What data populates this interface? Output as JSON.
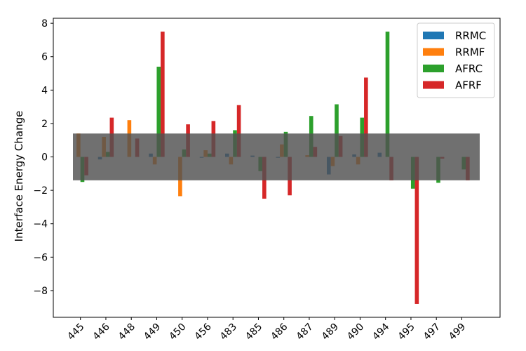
{
  "chart_data": {
    "type": "bar",
    "title": "",
    "xlabel": "",
    "ylabel": "Interface Energy Change",
    "categories": [
      "445",
      "446",
      "448",
      "449",
      "450",
      "456",
      "483",
      "485",
      "486",
      "487",
      "489",
      "490",
      "494",
      "495",
      "497",
      "499"
    ],
    "series": [
      {
        "name": "RRMC",
        "color": "#1f77b4",
        "values": [
          0.0,
          -0.15,
          0.0,
          0.2,
          0.0,
          -0.05,
          0.2,
          0.08,
          -0.05,
          0.0,
          -1.05,
          0.15,
          0.25,
          0.0,
          0.0,
          0.0
        ]
      },
      {
        "name": "RRMF",
        "color": "#ff7f0e",
        "values": [
          1.4,
          1.2,
          2.2,
          -0.45,
          -2.35,
          0.4,
          -0.45,
          0.0,
          0.75,
          0.1,
          -0.55,
          -0.45,
          0.0,
          0.0,
          0.0,
          0.0
        ]
      },
      {
        "name": "AFRC",
        "color": "#2ca02c",
        "values": [
          -1.5,
          0.3,
          0.0,
          5.4,
          0.45,
          0.2,
          1.6,
          -0.85,
          1.5,
          2.45,
          3.15,
          2.35,
          7.5,
          -1.9,
          -1.55,
          -0.75
        ]
      },
      {
        "name": "AFRF",
        "color": "#d62728",
        "values": [
          -1.1,
          2.35,
          1.1,
          7.5,
          1.95,
          2.15,
          3.1,
          -2.5,
          -2.3,
          0.6,
          1.25,
          4.75,
          -1.4,
          -8.8,
          -0.1,
          -1.4
        ]
      }
    ],
    "ylim": [
      -9.6,
      8.3
    ],
    "yticks": [
      -8,
      -6,
      -4,
      -2,
      0,
      2,
      4,
      6,
      8
    ],
    "ytick_labels": [
      "−8",
      "−6",
      "−4",
      "−2",
      "0",
      "2",
      "4",
      "6",
      "8"
    ],
    "band": {
      "from": -1.4,
      "to": 1.4,
      "color": "#505050",
      "opacity": 0.82
    },
    "legend_position": "top-right",
    "grid": false
  }
}
